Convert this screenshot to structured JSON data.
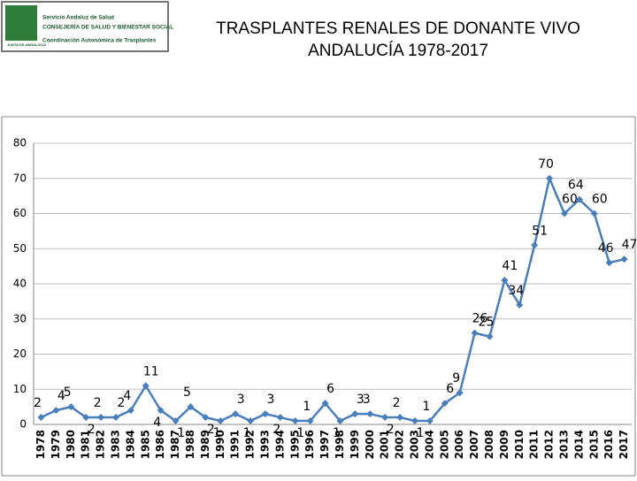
{
  "header": {
    "logo_lines": [
      "Servicio Andaluz de Salud",
      "CONSEJERÍA DE SALUD Y BIENESTAR SOCIAL",
      "Coordinación Autonómica de Trasplantes"
    ],
    "logo_badge": "JUNTA DE ANDALUCIA",
    "title_lines": [
      "TRASPLANTES  RENALES  DE  DONANTE  VIVO",
      "ANDALUCÍA    1978-2017"
    ]
  },
  "chart_data": {
    "type": "line",
    "categories": [
      "1978",
      "1979",
      "1980",
      "1981",
      "1982",
      "1983",
      "1984",
      "1985",
      "1986",
      "1987",
      "1988",
      "1989",
      "1990",
      "1991",
      "1992",
      "1993",
      "1994",
      "1995",
      "1996",
      "1997",
      "1998",
      "1999",
      "2000",
      "2001",
      "2002",
      "2003",
      "2004",
      "2005",
      "2006",
      "2007",
      "2008",
      "2009",
      "2010",
      "2011",
      "2012",
      "2013",
      "2014",
      "2015",
      "2016",
      "2017"
    ],
    "series": [
      {
        "color": "#4a7ebb",
        "values": [
          2,
          4,
          5,
          2,
          2,
          2,
          4,
          11,
          4,
          1,
          5,
          2,
          1,
          3,
          1,
          3,
          2,
          1,
          1,
          6,
          1,
          3,
          3,
          2,
          2,
          1,
          1,
          6,
          9,
          26,
          25,
          41,
          34,
          51,
          70,
          60,
          64,
          60,
          46,
          47
        ]
      }
    ],
    "ylim": [
      0,
      80
    ],
    "yticks": [
      0,
      10,
      20,
      30,
      40,
      50,
      60,
      70,
      80
    ],
    "grid": true
  }
}
